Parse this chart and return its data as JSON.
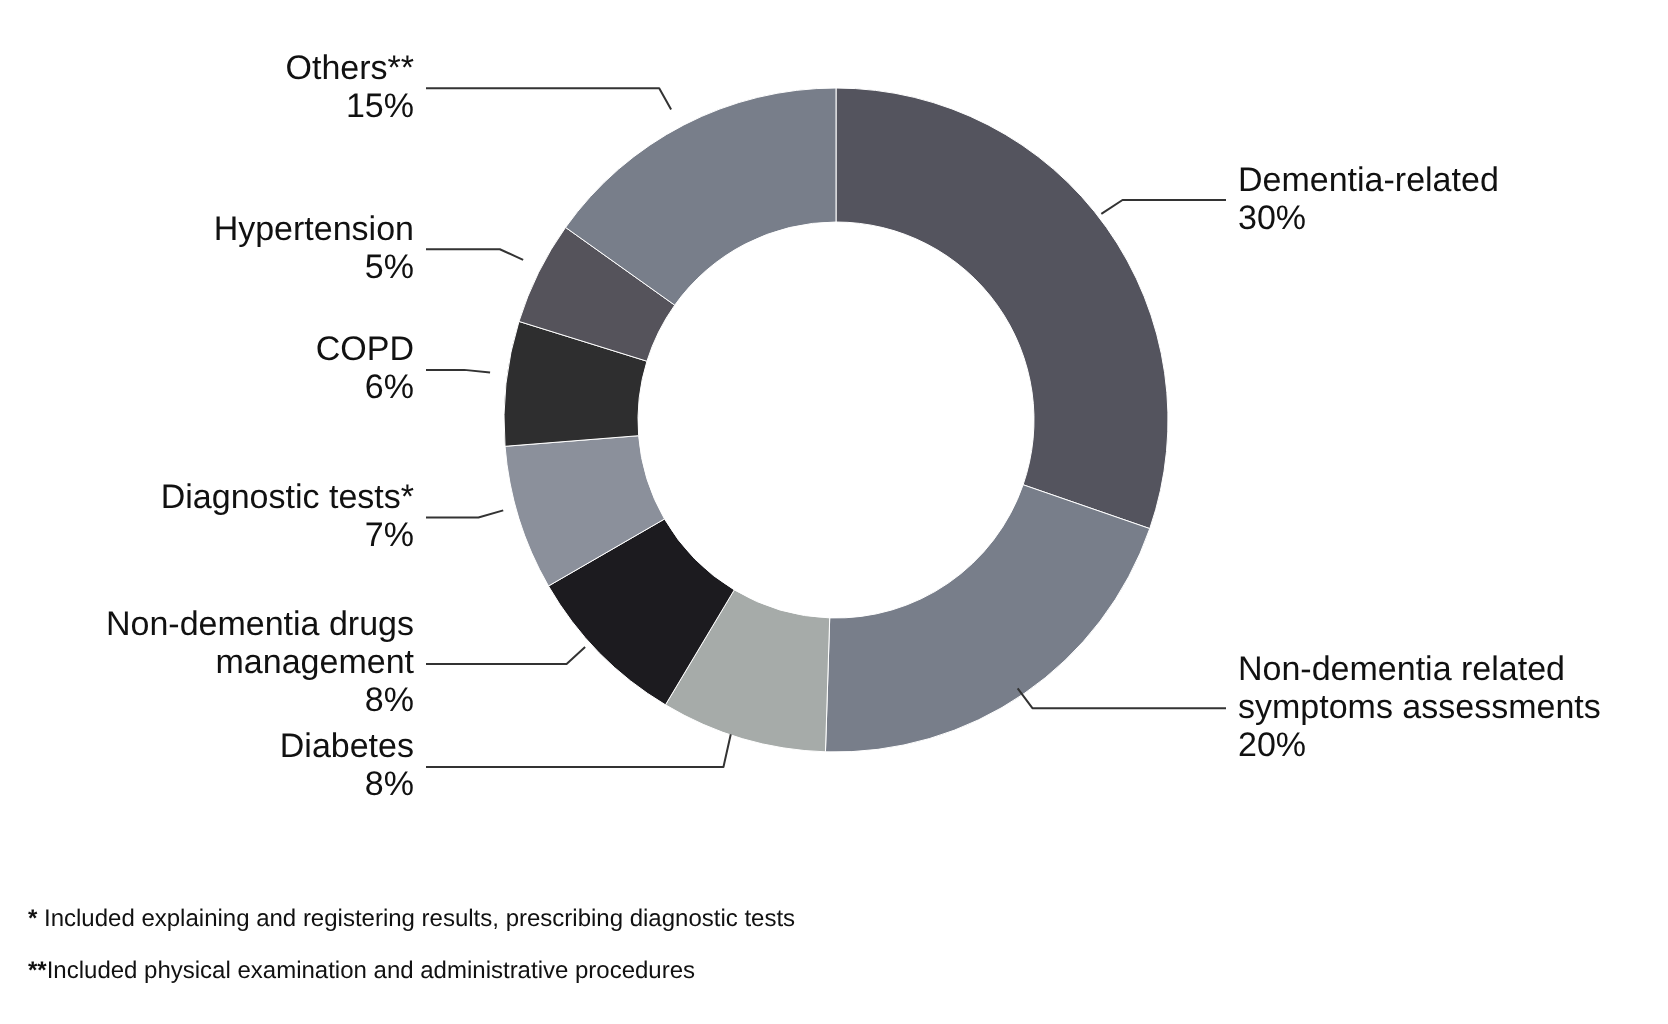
{
  "chart_data": {
    "type": "donut",
    "categories": [
      "Dementia-related",
      "Non-dementia related symptoms assessments",
      "Diabetes",
      "Non-dementia drugs management",
      "Diagnostic tests*",
      "COPD",
      "Hypertension",
      "Others**"
    ],
    "values": [
      30,
      20,
      8,
      8,
      7,
      6,
      5,
      15
    ],
    "value_labels": [
      "30%",
      "20%",
      "8%",
      "8%",
      "7%",
      "6%",
      "5%",
      "15%"
    ],
    "colors": [
      "#54545e",
      "#787e8a",
      "#a6aba9",
      "#1c1b1f",
      "#8b909b",
      "#2e2e2f",
      "#55535b",
      "#787e8a"
    ],
    "annotations": [
      "* Included explaining and registering results, prescribing diagnostic tests",
      "**Included physical examination and administrative procedures"
    ]
  }
}
